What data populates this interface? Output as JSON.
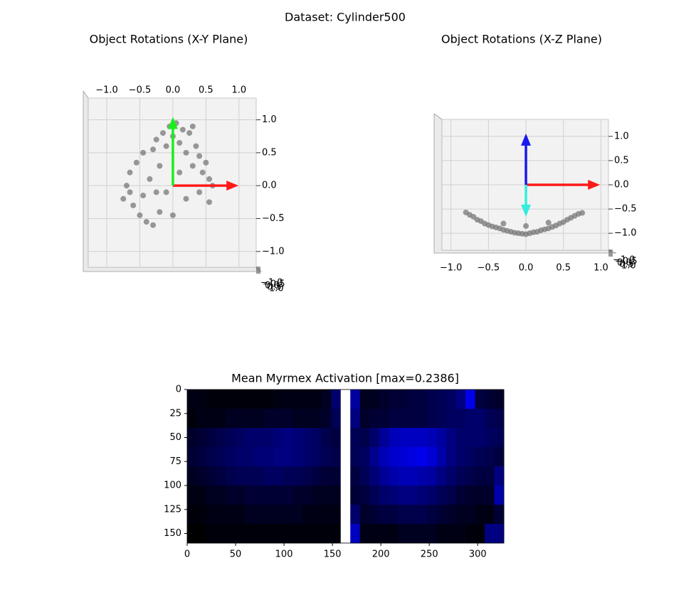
{
  "suptitle": "Dataset: Cylinder500",
  "chart_data": [
    {
      "type": "scatter3d",
      "plane": "xy",
      "title": "Object Rotations (X-Y Plane)",
      "xlim": [
        -1.28,
        1.26
      ],
      "ylim": [
        -1.24,
        1.33
      ],
      "grid": true,
      "xticks": [
        {
          "value": -1,
          "label": "−1.0"
        },
        {
          "value": -0.5,
          "label": "−0.5"
        },
        {
          "value": 0,
          "label": "0.0"
        },
        0.5,
        {
          "value": 1,
          "label": "1.0"
        }
      ],
      "yticks": [
        {
          "value": -1,
          "label": "−1.0"
        },
        {
          "value": -0.5,
          "label": "−0.5"
        },
        {
          "value": 0,
          "label": "0.0"
        },
        0.5,
        {
          "value": 1,
          "label": "1.0"
        }
      ],
      "zticks": [
        {
          "value": -1,
          "label": "−1.0"
        },
        {
          "value": -0.5,
          "label": "−0.5"
        },
        {
          "value": 0,
          "label": "0.0"
        },
        0.5,
        {
          "value": 1,
          "label": "1.0"
        }
      ],
      "series": [
        {
          "color": "#777777",
          "x": [
            -0.7,
            -0.75,
            -0.65,
            -0.6,
            -0.55,
            -0.5,
            -0.45,
            -0.4,
            -0.35,
            -0.3,
            -0.3,
            -0.25,
            -0.2,
            -0.2,
            -0.15,
            -0.1,
            -0.1,
            -0.05,
            0.0,
            0.05,
            0.1,
            0.1,
            0.15,
            0.2,
            0.25,
            0.3,
            0.35,
            0.4,
            0.45,
            0.5,
            0.55,
            0.6,
            0.55,
            0.4,
            0.2,
            0.0,
            -0.25,
            -0.45,
            -0.65,
            0.3
          ],
          "y": [
            0.0,
            -0.2,
            0.2,
            -0.3,
            0.35,
            -0.45,
            0.5,
            -0.55,
            0.1,
            -0.6,
            0.55,
            0.7,
            -0.4,
            0.3,
            0.8,
            -0.1,
            0.6,
            0.9,
            0.75,
            0.95,
            0.65,
            0.2,
            0.85,
            0.5,
            0.8,
            0.3,
            0.6,
            0.45,
            0.2,
            0.35,
            0.1,
            0.0,
            -0.25,
            -0.1,
            -0.2,
            -0.45,
            -0.1,
            -0.15,
            -0.1,
            0.9
          ]
        }
      ],
      "arrows": [
        {
          "color": "#ff1a1a",
          "x": [
            0,
            0.95
          ],
          "y": [
            0,
            0
          ]
        },
        {
          "color": "#1aee1a",
          "x": [
            0,
            0
          ],
          "y": [
            0,
            1.0
          ]
        }
      ]
    },
    {
      "type": "scatter3d",
      "plane": "xz",
      "title": "Object Rotations (X-Z Plane)",
      "xlim": [
        -1.12,
        1.1
      ],
      "zlim": [
        -1.35,
        1.35
      ],
      "grid": true,
      "xticks": [
        {
          "value": -1,
          "label": "−1.0"
        },
        {
          "value": -0.5,
          "label": "−0.5"
        },
        {
          "value": 0,
          "label": "0.0"
        },
        0.5,
        {
          "value": 1,
          "label": "1.0"
        }
      ],
      "zticks": [
        {
          "value": -1,
          "label": "−1.0"
        },
        {
          "value": -0.5,
          "label": "−0.5"
        },
        {
          "value": 0,
          "label": "0.0"
        },
        0.5,
        {
          "value": 1,
          "label": "1.0"
        }
      ],
      "yticks": [
        {
          "value": -1,
          "label": "−1.0"
        },
        {
          "value": -0.5,
          "label": "−0.5"
        },
        {
          "value": 0,
          "label": "0.0"
        },
        0.5,
        {
          "value": 1,
          "label": "1.0"
        }
      ],
      "series": [
        {
          "color": "#777777",
          "x": [
            -0.8,
            -0.75,
            -0.7,
            -0.65,
            -0.6,
            -0.55,
            -0.5,
            -0.45,
            -0.4,
            -0.35,
            -0.3,
            -0.25,
            -0.2,
            -0.15,
            -0.1,
            -0.05,
            0.0,
            0.05,
            0.1,
            0.15,
            0.2,
            0.25,
            0.3,
            0.35,
            0.4,
            0.45,
            0.5,
            0.55,
            0.6,
            0.65,
            0.7,
            0.75,
            -0.3,
            0.0,
            0.3
          ],
          "z": [
            -0.57,
            -0.62,
            -0.66,
            -0.72,
            -0.75,
            -0.8,
            -0.83,
            -0.86,
            -0.88,
            -0.9,
            -0.93,
            -0.95,
            -0.97,
            -0.99,
            -1.0,
            -1.01,
            -1.02,
            -1.0,
            -0.98,
            -0.97,
            -0.94,
            -0.92,
            -0.9,
            -0.87,
            -0.84,
            -0.8,
            -0.77,
            -0.72,
            -0.68,
            -0.64,
            -0.6,
            -0.58,
            -0.8,
            -0.85,
            -0.78
          ]
        }
      ],
      "arrows": [
        {
          "color": "#ff1a1a",
          "x": [
            0,
            0.95
          ],
          "z": [
            0,
            0
          ]
        },
        {
          "color": "#1a1aee",
          "x": [
            0,
            0
          ],
          "z": [
            0,
            1.0
          ]
        },
        {
          "color": "#33eedd",
          "x": [
            0,
            0
          ],
          "z": [
            0,
            -0.6
          ]
        }
      ]
    },
    {
      "type": "heatmap",
      "title": "Mean Myrmex Activation [max=0.2386]",
      "vmax": 0.2386,
      "xlim": [
        0,
        327
      ],
      "ylim": [
        160,
        0
      ],
      "xticks": [
        0,
        50,
        100,
        150,
        200,
        250,
        300
      ],
      "yticks": [
        0,
        25,
        50,
        75,
        100,
        125,
        150
      ],
      "values": [
        [
          0.02,
          0.02,
          0.01,
          0.01,
          0.01,
          0.01,
          0.01,
          0.01,
          0.01,
          0.02,
          0.02,
          0.02,
          0.02,
          0.02,
          0.03,
          0.1,
          null,
          0.15,
          0.03,
          0.03,
          0.04,
          0.05,
          0.05,
          0.06,
          0.06,
          0.07,
          0.08,
          0.09,
          0.12,
          0.22,
          0.06,
          0.05,
          0.04
        ],
        [
          0.01,
          0.02,
          0.02,
          0.02,
          0.03,
          0.03,
          0.03,
          0.03,
          0.04,
          0.04,
          0.04,
          0.03,
          0.03,
          0.03,
          0.04,
          0.08,
          null,
          0.12,
          0.04,
          0.05,
          0.05,
          0.06,
          0.06,
          0.06,
          0.06,
          0.07,
          0.08,
          0.09,
          0.09,
          0.1,
          0.1,
          0.08,
          0.07
        ],
        [
          0.04,
          0.05,
          0.06,
          0.07,
          0.08,
          0.09,
          0.1,
          0.1,
          0.1,
          0.11,
          0.12,
          0.11,
          0.1,
          0.09,
          0.07,
          0.06,
          null,
          0.08,
          0.07,
          0.1,
          0.14,
          0.17,
          0.18,
          0.18,
          0.18,
          0.17,
          0.15,
          0.12,
          0.1,
          0.1,
          0.1,
          0.09,
          0.08
        ],
        [
          0.05,
          0.06,
          0.07,
          0.08,
          0.09,
          0.1,
          0.1,
          0.11,
          0.11,
          0.12,
          0.12,
          0.11,
          0.1,
          0.09,
          0.08,
          0.07,
          null,
          0.08,
          0.09,
          0.13,
          0.17,
          0.19,
          0.2,
          0.21,
          0.22,
          0.2,
          0.16,
          0.12,
          0.1,
          0.09,
          0.08,
          0.07,
          0.06
        ],
        [
          0.03,
          0.04,
          0.05,
          0.06,
          0.07,
          0.08,
          0.08,
          0.08,
          0.09,
          0.09,
          0.08,
          0.08,
          0.07,
          0.06,
          0.05,
          0.05,
          null,
          0.06,
          0.08,
          0.11,
          0.14,
          0.16,
          0.17,
          0.17,
          0.16,
          0.15,
          0.12,
          0.1,
          0.08,
          0.07,
          0.06,
          0.06,
          0.12
        ],
        [
          0.02,
          0.02,
          0.03,
          0.03,
          0.04,
          0.04,
          0.05,
          0.05,
          0.05,
          0.05,
          0.05,
          0.04,
          0.04,
          0.03,
          0.03,
          0.03,
          null,
          0.05,
          0.06,
          0.08,
          0.1,
          0.11,
          0.12,
          0.12,
          0.11,
          0.1,
          0.08,
          0.07,
          0.05,
          0.04,
          0.04,
          0.04,
          0.16
        ],
        [
          0.01,
          0.01,
          0.02,
          0.02,
          0.02,
          0.02,
          0.03,
          0.03,
          0.03,
          0.03,
          0.03,
          0.03,
          0.02,
          0.02,
          0.02,
          0.02,
          null,
          0.1,
          0.04,
          0.05,
          0.06,
          0.06,
          0.07,
          0.07,
          0.07,
          0.06,
          0.05,
          0.04,
          0.03,
          0.03,
          0.02,
          0.02,
          0.05
        ],
        [
          0.0,
          0.0,
          0.01,
          0.01,
          0.01,
          0.01,
          0.01,
          0.01,
          0.01,
          0.01,
          0.01,
          0.01,
          0.01,
          0.01,
          0.01,
          0.01,
          null,
          0.18,
          0.02,
          0.02,
          0.02,
          0.02,
          0.03,
          0.03,
          0.03,
          0.03,
          0.02,
          0.02,
          0.02,
          0.01,
          0.01,
          0.12,
          0.12
        ]
      ]
    }
  ]
}
